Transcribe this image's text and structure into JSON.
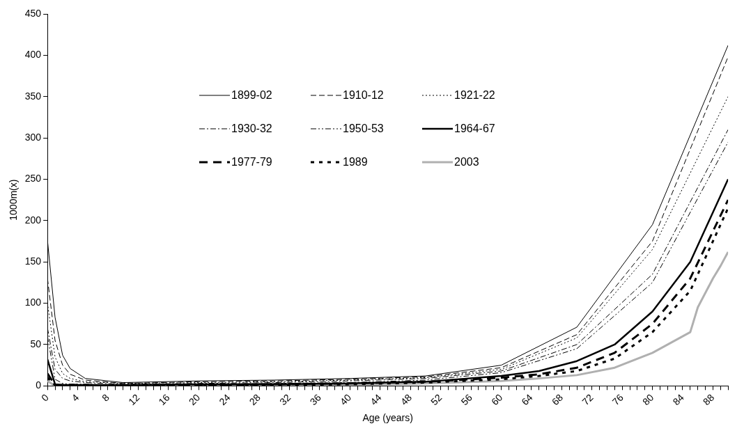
{
  "chart_data": {
    "type": "line",
    "xlabel": "Age (years)",
    "ylabel": "1000m(x)",
    "xlim": [
      0,
      90
    ],
    "ylim": [
      0,
      450
    ],
    "yticks": [
      0,
      50,
      100,
      150,
      200,
      250,
      300,
      350,
      400,
      450
    ],
    "xticks": [
      0,
      {
        "value": 1,
        "label": null
      },
      {
        "value": 2,
        "label": null
      },
      {
        "value": 3,
        "label": null
      },
      4,
      {
        "value": 5,
        "label": null
      },
      {
        "value": 6,
        "label": null
      },
      {
        "value": 7,
        "label": null
      },
      8,
      {
        "value": 9,
        "label": null
      },
      {
        "value": 10,
        "label": null
      },
      {
        "value": 11,
        "label": null
      },
      12,
      {
        "value": 13,
        "label": null
      },
      {
        "value": 14,
        "label": null
      },
      {
        "value": 15,
        "label": null
      },
      16,
      {
        "value": 17,
        "label": null
      },
      {
        "value": 18,
        "label": null
      },
      {
        "value": 19,
        "label": null
      },
      20,
      {
        "value": 21,
        "label": null
      },
      {
        "value": 22,
        "label": null
      },
      {
        "value": 23,
        "label": null
      },
      24,
      {
        "value": 25,
        "label": null
      },
      {
        "value": 26,
        "label": null
      },
      {
        "value": 27,
        "label": null
      },
      28,
      {
        "value": 29,
        "label": null
      },
      {
        "value": 30,
        "label": null
      },
      {
        "value": 31,
        "label": null
      },
      32,
      {
        "value": 33,
        "label": null
      },
      {
        "value": 34,
        "label": null
      },
      {
        "value": 35,
        "label": null
      },
      36,
      {
        "value": 37,
        "label": null
      },
      {
        "value": 38,
        "label": null
      },
      {
        "value": 39,
        "label": null
      },
      40,
      {
        "value": 41,
        "label": null
      },
      {
        "value": 42,
        "label": null
      },
      {
        "value": 43,
        "label": null
      },
      44,
      {
        "value": 45,
        "label": null
      },
      {
        "value": 46,
        "label": null
      },
      {
        "value": 47,
        "label": null
      },
      48,
      {
        "value": 49,
        "label": null
      },
      {
        "value": 50,
        "label": null
      },
      {
        "value": 51,
        "label": null
      },
      52,
      {
        "value": 53,
        "label": null
      },
      {
        "value": 54,
        "label": null
      },
      {
        "value": 55,
        "label": null
      },
      56,
      {
        "value": 57,
        "label": null
      },
      {
        "value": 58,
        "label": null
      },
      {
        "value": 59,
        "label": null
      },
      60,
      {
        "value": 61,
        "label": null
      },
      {
        "value": 62,
        "label": null
      },
      {
        "value": 63,
        "label": null
      },
      64,
      {
        "value": 65,
        "label": null
      },
      {
        "value": 66,
        "label": null
      },
      {
        "value": 67,
        "label": null
      },
      68,
      {
        "value": 69,
        "label": null
      },
      {
        "value": 70,
        "label": null
      },
      {
        "value": 71,
        "label": null
      },
      72,
      {
        "value": 73,
        "label": null
      },
      {
        "value": 74,
        "label": null
      },
      {
        "value": 75,
        "label": null
      },
      76,
      {
        "value": 77,
        "label": null
      },
      {
        "value": 78,
        "label": null
      },
      {
        "value": 79,
        "label": null
      },
      80,
      {
        "value": 81,
        "label": null
      },
      {
        "value": 82,
        "label": null
      },
      {
        "value": 83,
        "label": null
      },
      84,
      {
        "value": 85,
        "label": null
      },
      {
        "value": 86,
        "label": null
      },
      {
        "value": 87,
        "label": null
      },
      88,
      {
        "value": 89,
        "label": null
      },
      {
        "value": 90,
        "label": null
      }
    ],
    "grid": false,
    "legend": "top",
    "marker": "none",
    "series": [
      {
        "name": "1899-02",
        "color": "#000000",
        "line_style": "solid",
        "x": [
          0,
          1,
          2,
          3,
          5,
          10,
          20,
          30,
          40,
          50,
          60,
          70,
          80,
          90
        ],
        "values": [
          176,
          83,
          37,
          21,
          9,
          4,
          6,
          7,
          9,
          12,
          25,
          71,
          195,
          412
        ]
      },
      {
        "name": "1910-12",
        "color": "#000000",
        "line_style": "dashed",
        "x": [
          0,
          1,
          2,
          3,
          5,
          10,
          20,
          30,
          40,
          50,
          60,
          70,
          80,
          90
        ],
        "values": [
          130,
          55,
          25,
          14,
          7,
          3,
          5,
          6,
          8,
          11,
          22,
          62,
          175,
          398
        ]
      },
      {
        "name": "1921-22",
        "color": "#000000",
        "line_style": "dotted",
        "x": [
          0,
          1,
          2,
          3,
          5,
          10,
          20,
          30,
          40,
          50,
          60,
          70,
          80,
          90
        ],
        "values": [
          100,
          35,
          15,
          9,
          5,
          3,
          4,
          5,
          7,
          10,
          20,
          58,
          165,
          350
        ]
      },
      {
        "name": "1930-32",
        "color": "#000000",
        "line_style": "dashed",
        "x": [
          0,
          1,
          2,
          3,
          5,
          10,
          20,
          30,
          40,
          50,
          60,
          70,
          80,
          90
        ],
        "values": [
          70,
          20,
          9,
          6,
          4,
          2,
          3,
          4,
          6,
          9,
          18,
          50,
          135,
          310
        ]
      },
      {
        "name": "1950-53",
        "color": "#000000",
        "line_style": "dashed",
        "x": [
          0,
          1,
          2,
          3,
          5,
          10,
          20,
          30,
          40,
          50,
          60,
          70,
          80,
          90
        ],
        "values": [
          60,
          8,
          3,
          2,
          2,
          1,
          2,
          3,
          4,
          7,
          16,
          45,
          125,
          295
        ]
      },
      {
        "name": "1964-67",
        "color": "#000000",
        "line_style": "solid",
        "x": [
          0,
          1,
          2,
          5,
          10,
          20,
          30,
          40,
          50,
          60,
          65,
          70,
          75,
          80,
          85,
          90
        ],
        "values": [
          32,
          2,
          1,
          1,
          1,
          2,
          2,
          3,
          5,
          12,
          18,
          30,
          50,
          90,
          150,
          250
        ]
      },
      {
        "name": "1977-79",
        "color": "#000000",
        "line_style": "dashed",
        "x": [
          0,
          1,
          5,
          10,
          20,
          30,
          40,
          50,
          60,
          65,
          70,
          75,
          80,
          85,
          90
        ],
        "values": [
          15,
          1,
          1,
          0,
          1,
          2,
          3,
          5,
          10,
          14,
          22,
          40,
          75,
          130,
          225
        ]
      },
      {
        "name": "1989",
        "color": "#000000",
        "line_style": "dotted",
        "x": [
          0,
          1,
          5,
          10,
          20,
          30,
          40,
          50,
          60,
          65,
          70,
          75,
          80,
          85,
          90
        ],
        "values": [
          10,
          1,
          0,
          0,
          1,
          1,
          2,
          4,
          8,
          12,
          18,
          33,
          65,
          115,
          215
        ]
      },
      {
        "name": "2003",
        "color": "#b0b0b0",
        "line_style": "solid",
        "x": [
          0,
          1,
          5,
          10,
          20,
          30,
          40,
          50,
          60,
          65,
          70,
          75,
          80,
          85,
          86,
          88,
          89,
          90
        ],
        "values": [
          6,
          0,
          0,
          0,
          1,
          1,
          1,
          3,
          6,
          9,
          13,
          22,
          40,
          65,
          95,
          130,
          145,
          162
        ]
      }
    ]
  }
}
